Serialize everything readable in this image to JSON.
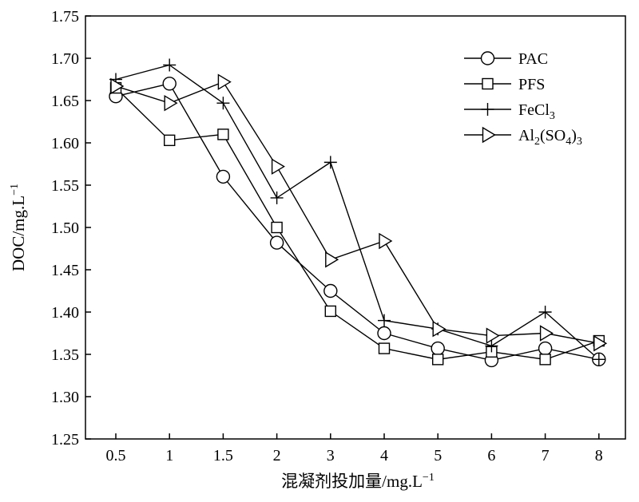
{
  "chart_data": {
    "type": "line",
    "title": "",
    "xlabel": "混凝剂投加量/mg.L",
    "xlabel_sup": "−1",
    "ylabel": "DOC/mg.L",
    "ylabel_sup": "−1",
    "categories": [
      "0.5",
      "1",
      "1.5",
      "2",
      "3",
      "4",
      "5",
      "6",
      "7",
      "8"
    ],
    "ylim": [
      1.25,
      1.75
    ],
    "yticks": [
      "1.25",
      "1.30",
      "1.35",
      "1.40",
      "1.45",
      "1.50",
      "1.55",
      "1.60",
      "1.65",
      "1.70",
      "1.75"
    ],
    "grid": false,
    "legend_position": "top-right",
    "series": [
      {
        "name": "PAC",
        "label_parts": [
          {
            "t": "PAC"
          }
        ],
        "marker": "circle",
        "values": [
          1.655,
          1.67,
          1.56,
          1.482,
          1.425,
          1.375,
          1.357,
          1.343,
          1.357,
          1.344
        ]
      },
      {
        "name": "PFS",
        "label_parts": [
          {
            "t": "PFS"
          }
        ],
        "marker": "square",
        "values": [
          1.665,
          1.603,
          1.61,
          1.5,
          1.401,
          1.357,
          1.344,
          1.353,
          1.344,
          1.366
        ]
      },
      {
        "name": "FeCl3",
        "label_parts": [
          {
            "t": "FeCl"
          },
          {
            "t": "3",
            "sub": true
          }
        ],
        "marker": "plus",
        "values": [
          1.675,
          1.692,
          1.647,
          1.535,
          1.577,
          1.39,
          1.38,
          1.36,
          1.4,
          1.344
        ]
      },
      {
        "name": "Al2(SO4)3",
        "label_parts": [
          {
            "t": "Al"
          },
          {
            "t": "2",
            "sub": true
          },
          {
            "t": "(SO"
          },
          {
            "t": "4",
            "sub": true
          },
          {
            "t": ")"
          },
          {
            "t": "3",
            "sub": true
          }
        ],
        "marker": "triangle-right",
        "values": [
          1.667,
          1.647,
          1.672,
          1.572,
          1.462,
          1.484,
          1.38,
          1.372,
          1.375,
          1.363
        ]
      }
    ]
  }
}
